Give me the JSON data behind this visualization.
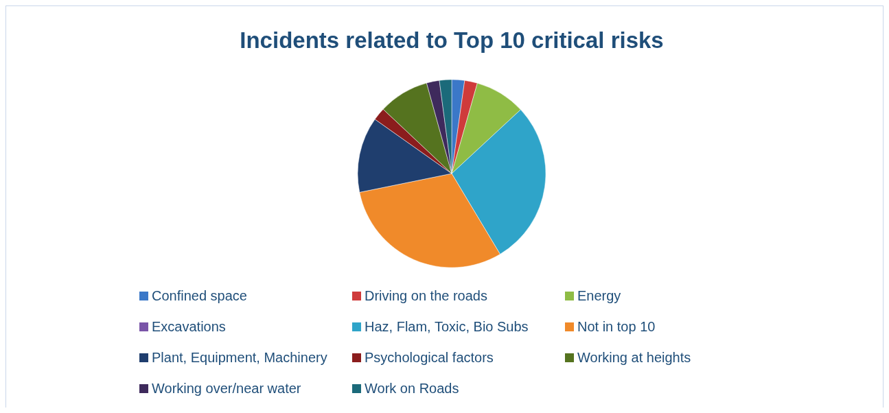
{
  "chart_data": {
    "type": "pie",
    "title": "Incidents related to Top 10 critical risks",
    "categories": [
      "Confined space",
      "Driving on the roads",
      "Energy",
      "Excavations",
      "Haz, Flam, Toxic, Bio Subs",
      "Not in top 10",
      "Plant, Equipment, Machinery",
      "Psychological factors",
      "Working at heights",
      "Working over/near water",
      "Work on Roads"
    ],
    "values": [
      2.2,
      2.2,
      8.7,
      0,
      28.3,
      30.4,
      13.0,
      2.2,
      8.7,
      2.2,
      2.1
    ],
    "colors": [
      "#3b78c8",
      "#cf3b3b",
      "#8fbc45",
      "#7a55a8",
      "#2fa4c9",
      "#f08a2a",
      "#1f3e6e",
      "#8b1d1d",
      "#55731f",
      "#3e2a5c",
      "#1b6a7a"
    ],
    "legend": "bottom"
  }
}
